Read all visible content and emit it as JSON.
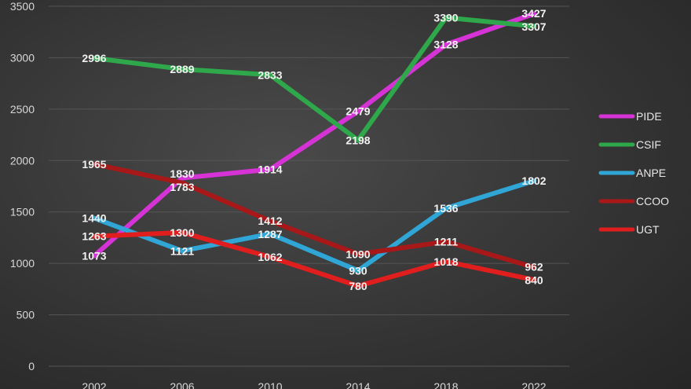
{
  "chart_data": {
    "type": "line",
    "categories": [
      "2002",
      "2006",
      "2010",
      "2014",
      "2018",
      "2022"
    ],
    "ylim": [
      0,
      3500
    ],
    "yticks": [
      0,
      500,
      1000,
      1500,
      2000,
      2500,
      3000,
      3500
    ],
    "grid": true,
    "legend_position": "right",
    "series": [
      {
        "name": "PIDE",
        "color": "#d633d6",
        "values": [
          1073,
          1830,
          1914,
          2479,
          3128,
          3427
        ]
      },
      {
        "name": "CSIF",
        "color": "#2ea84a",
        "values": [
          2996,
          2889,
          2833,
          2198,
          3390,
          3307
        ]
      },
      {
        "name": "ANPE",
        "color": "#2fa6d6",
        "values": [
          1440,
          1121,
          1287,
          930,
          1536,
          1802
        ]
      },
      {
        "name": "CCOO",
        "color": "#a81818",
        "values": [
          1965,
          1783,
          1412,
          1090,
          1211,
          962
        ]
      },
      {
        "name": "UGT",
        "color": "#e01e1e",
        "values": [
          1263,
          1300,
          1062,
          780,
          1018,
          840
        ]
      }
    ]
  }
}
